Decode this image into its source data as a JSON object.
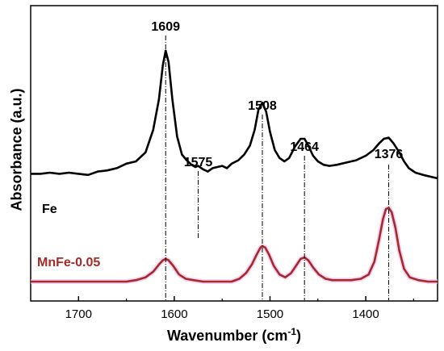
{
  "chart_data": {
    "type": "line",
    "xlabel_main": "Wavenumber (cm",
    "xlabel_sup": "-1",
    "xlabel_end": ")",
    "ylabel": "Absorbance (a.u.)",
    "xlim": [
      1750,
      1325
    ],
    "x_reversed": true,
    "x_ticks": [
      1700,
      1600,
      1500,
      1400
    ],
    "y_ticks_shown": false,
    "grid": false,
    "series": [
      {
        "name": "Fe",
        "color": "#000000",
        "points": [
          [
            1750,
            0.39
          ],
          [
            1740,
            0.39
          ],
          [
            1730,
            0.4
          ],
          [
            1720,
            0.39
          ],
          [
            1710,
            0.4
          ],
          [
            1700,
            0.39
          ],
          [
            1690,
            0.38
          ],
          [
            1680,
            0.41
          ],
          [
            1670,
            0.42
          ],
          [
            1660,
            0.44
          ],
          [
            1650,
            0.48
          ],
          [
            1640,
            0.5
          ],
          [
            1630,
            0.58
          ],
          [
            1622,
            0.78
          ],
          [
            1616,
            1.05
          ],
          [
            1612,
            1.35
          ],
          [
            1609,
            1.48
          ],
          [
            1606,
            1.38
          ],
          [
            1602,
            1.05
          ],
          [
            1597,
            0.72
          ],
          [
            1592,
            0.56
          ],
          [
            1587,
            0.51
          ],
          [
            1582,
            0.47
          ],
          [
            1578,
            0.45
          ],
          [
            1575,
            0.46
          ],
          [
            1570,
            0.43
          ],
          [
            1565,
            0.41
          ],
          [
            1560,
            0.44
          ],
          [
            1555,
            0.45
          ],
          [
            1550,
            0.46
          ],
          [
            1545,
            0.44
          ],
          [
            1540,
            0.48
          ],
          [
            1533,
            0.51
          ],
          [
            1527,
            0.56
          ],
          [
            1521,
            0.64
          ],
          [
            1516,
            0.78
          ],
          [
            1512,
            0.96
          ],
          [
            1508,
            1.02
          ],
          [
            1504,
            0.94
          ],
          [
            1500,
            0.76
          ],
          [
            1495,
            0.6
          ],
          [
            1490,
            0.53
          ],
          [
            1485,
            0.5
          ],
          [
            1480,
            0.53
          ],
          [
            1474,
            0.63
          ],
          [
            1468,
            0.7
          ],
          [
            1464,
            0.7
          ],
          [
            1460,
            0.64
          ],
          [
            1455,
            0.55
          ],
          [
            1450,
            0.5
          ],
          [
            1444,
            0.47
          ],
          [
            1438,
            0.46
          ],
          [
            1430,
            0.47
          ],
          [
            1420,
            0.49
          ],
          [
            1410,
            0.51
          ],
          [
            1400,
            0.55
          ],
          [
            1392,
            0.6
          ],
          [
            1386,
            0.66
          ],
          [
            1381,
            0.7
          ],
          [
            1376,
            0.71
          ],
          [
            1371,
            0.66
          ],
          [
            1365,
            0.58
          ],
          [
            1360,
            0.5
          ],
          [
            1355,
            0.44
          ],
          [
            1348,
            0.4
          ],
          [
            1340,
            0.38
          ],
          [
            1330,
            0.36
          ],
          [
            1325,
            0.35
          ]
        ]
      },
      {
        "name": "MnFe-0.05",
        "color": "#a52a2a",
        "points": [
          [
            1750,
            0.0
          ],
          [
            1730,
            0.0
          ],
          [
            1710,
            0.0
          ],
          [
            1690,
            0.0
          ],
          [
            1670,
            0.0
          ],
          [
            1650,
            0.0
          ],
          [
            1640,
            0.01
          ],
          [
            1630,
            0.03
          ],
          [
            1622,
            0.07
          ],
          [
            1616,
            0.12
          ],
          [
            1612,
            0.15
          ],
          [
            1609,
            0.16
          ],
          [
            1606,
            0.15
          ],
          [
            1601,
            0.11
          ],
          [
            1595,
            0.05
          ],
          [
            1588,
            0.02
          ],
          [
            1580,
            0.01
          ],
          [
            1570,
            0.0
          ],
          [
            1560,
            0.0
          ],
          [
            1550,
            0.0
          ],
          [
            1540,
            0.0
          ],
          [
            1532,
            0.02
          ],
          [
            1525,
            0.06
          ],
          [
            1519,
            0.12
          ],
          [
            1514,
            0.19
          ],
          [
            1510,
            0.24
          ],
          [
            1508,
            0.25
          ],
          [
            1505,
            0.24
          ],
          [
            1501,
            0.19
          ],
          [
            1496,
            0.11
          ],
          [
            1490,
            0.05
          ],
          [
            1484,
            0.03
          ],
          [
            1478,
            0.06
          ],
          [
            1472,
            0.12
          ],
          [
            1468,
            0.16
          ],
          [
            1464,
            0.17
          ],
          [
            1460,
            0.15
          ],
          [
            1455,
            0.1
          ],
          [
            1449,
            0.05
          ],
          [
            1442,
            0.02
          ],
          [
            1435,
            0.01
          ],
          [
            1425,
            0.01
          ],
          [
            1415,
            0.01
          ],
          [
            1405,
            0.02
          ],
          [
            1397,
            0.05
          ],
          [
            1391,
            0.14
          ],
          [
            1386,
            0.3
          ],
          [
            1382,
            0.44
          ],
          [
            1379,
            0.51
          ],
          [
            1376,
            0.52
          ],
          [
            1373,
            0.49
          ],
          [
            1369,
            0.38
          ],
          [
            1365,
            0.22
          ],
          [
            1360,
            0.09
          ],
          [
            1354,
            0.03
          ],
          [
            1345,
            0.01
          ],
          [
            1335,
            0.0
          ],
          [
            1325,
            0.0
          ]
        ]
      }
    ],
    "annotations": [
      {
        "text": "1609",
        "x": 1609,
        "series": 0
      },
      {
        "text": "1575",
        "x": 1575,
        "series": 0
      },
      {
        "text": "1508",
        "x": 1508,
        "series": 0
      },
      {
        "text": "1464",
        "x": 1464,
        "series": 0
      },
      {
        "text": "1376",
        "x": 1376,
        "series": 0
      }
    ]
  }
}
